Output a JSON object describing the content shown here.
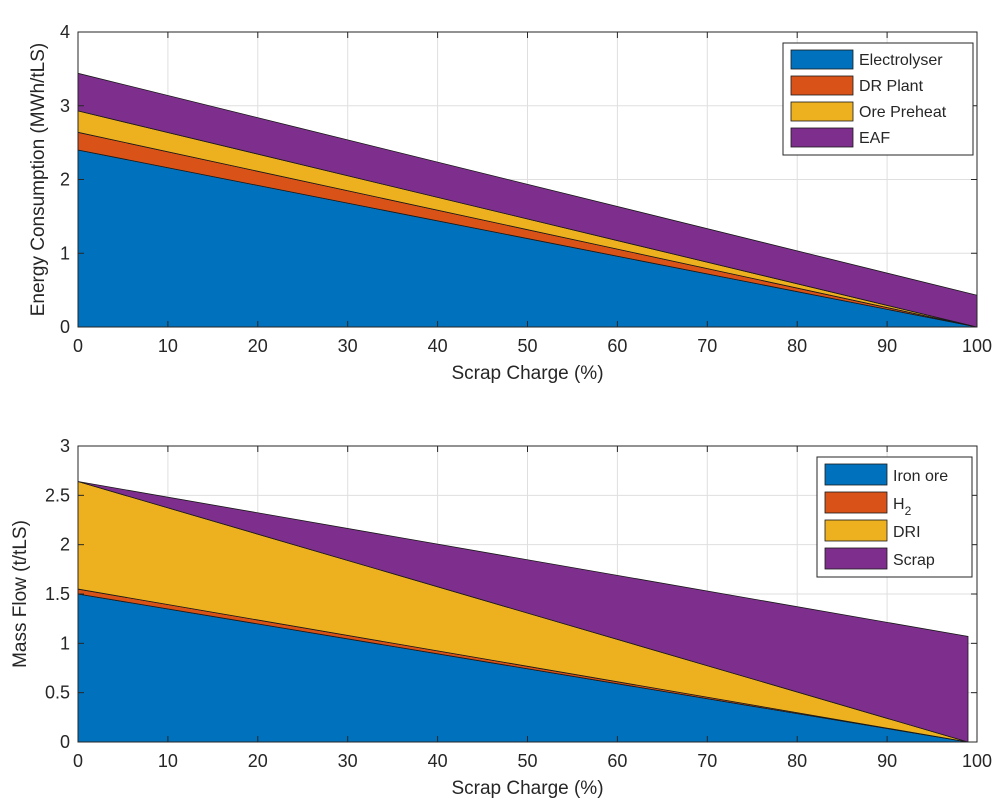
{
  "chart_data": [
    {
      "type": "area",
      "stacked": true,
      "xlabel": "Scrap Charge (%)",
      "ylabel": "Energy Consumption (MWh/tLS)",
      "xlim": [
        0,
        100
      ],
      "ylim": [
        0,
        4
      ],
      "xticks": [
        0,
        10,
        20,
        30,
        40,
        50,
        60,
        70,
        80,
        90,
        100
      ],
      "yticks": [
        0,
        1,
        2,
        3,
        4
      ],
      "grid": true,
      "legend_position": "top-right",
      "x": [
        0,
        100
      ],
      "series": [
        {
          "name": "Electrolyser",
          "values": [
            2.4,
            0.0
          ],
          "color": "#0072BD"
        },
        {
          "name": "DR Plant",
          "values": [
            0.24,
            0.0
          ],
          "color": "#D95319"
        },
        {
          "name": "Ore Preheat",
          "values": [
            0.29,
            0.0
          ],
          "color": "#EDB120"
        },
        {
          "name": "EAF",
          "values": [
            0.51,
            0.43
          ],
          "color": "#7E2F8E"
        }
      ]
    },
    {
      "type": "area",
      "stacked": true,
      "xlabel": "Scrap Charge (%)",
      "ylabel": "Mass Flow (t/tLS)",
      "xlim": [
        0,
        100
      ],
      "ylim": [
        0,
        3
      ],
      "xticks": [
        0,
        10,
        20,
        30,
        40,
        50,
        60,
        70,
        80,
        90,
        100
      ],
      "yticks": [
        0,
        0.5,
        1,
        1.5,
        2,
        2.5,
        3
      ],
      "grid": true,
      "legend_position": "top-right",
      "x": [
        0,
        99
      ],
      "series": [
        {
          "name": "Iron ore",
          "label_main": "Iron ore",
          "label_sub": "",
          "values": [
            1.5,
            0.0
          ],
          "color": "#0072BD"
        },
        {
          "name": "H2",
          "label_main": "H",
          "label_sub": "2",
          "values": [
            0.05,
            0.0
          ],
          "color": "#D95319"
        },
        {
          "name": "DRI",
          "label_main": "DRI",
          "label_sub": "",
          "values": [
            1.09,
            0.0
          ],
          "color": "#EDB120"
        },
        {
          "name": "Scrap",
          "label_main": "Scrap",
          "label_sub": "",
          "values": [
            0.0,
            1.07
          ],
          "color": "#7E2F8E"
        }
      ]
    }
  ]
}
